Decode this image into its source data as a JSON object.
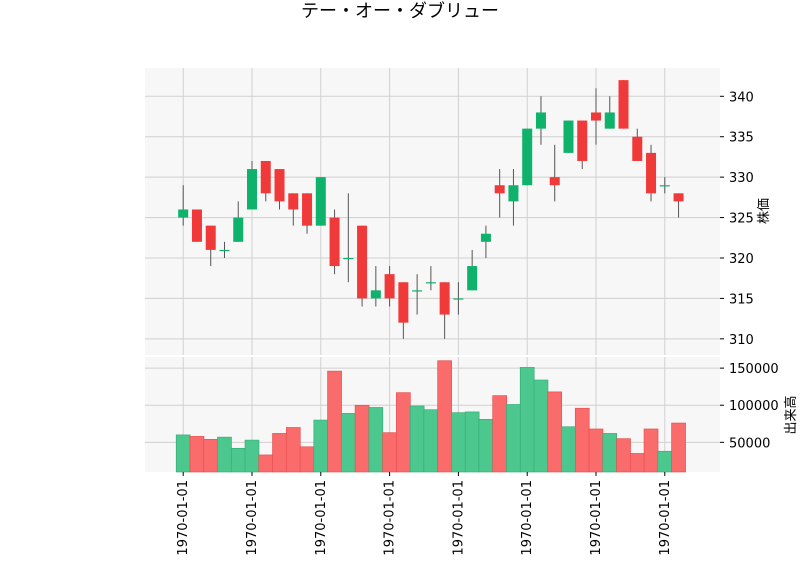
{
  "chart_data": {
    "type": "candlestick",
    "title": "テー・オー・ダブリュー",
    "price_axis": {
      "label": "株価",
      "ylim": [
        308,
        343.5
      ],
      "ticks": [
        310,
        315,
        320,
        325,
        330,
        335,
        340
      ]
    },
    "volume_axis": {
      "label": "出来高",
      "ylim": [
        10000,
        165000
      ],
      "ticks": [
        50000,
        100000,
        150000
      ],
      "tick_labels": [
        "50000",
        "100000",
        "150000"
      ]
    },
    "x_tick_labels": [
      "1970-01-01",
      "1970-01-01",
      "1970-01-01",
      "1970-01-01",
      "1970-01-01",
      "1970-01-01",
      "1970-01-01",
      "1970-01-01"
    ],
    "grid": true,
    "colors": {
      "up": "#0fb26b",
      "down": "#f03a3a",
      "volume_up": "#4cc88f",
      "volume_down": "#fa6b6b",
      "wick": "#555555",
      "panel_bg": "#f7f7f7",
      "grid": "#d0d0d0"
    },
    "candles": [
      {
        "open": 325,
        "high": 329,
        "low": 324,
        "close": 326,
        "volume": 60000
      },
      {
        "open": 326,
        "high": 326,
        "low": 322,
        "close": 322,
        "volume": 58000
      },
      {
        "open": 324,
        "high": 324,
        "low": 319,
        "close": 321,
        "volume": 54000
      },
      {
        "open": 321,
        "high": 322,
        "low": 320,
        "close": 321,
        "volume": 57000
      },
      {
        "open": 322,
        "high": 327,
        "low": 322,
        "close": 325,
        "volume": 42000
      },
      {
        "open": 326,
        "high": 332,
        "low": 326,
        "close": 331,
        "volume": 53000
      },
      {
        "open": 332,
        "high": 332,
        "low": 327,
        "close": 328,
        "volume": 33000
      },
      {
        "open": 331,
        "high": 331,
        "low": 326,
        "close": 327,
        "volume": 62000
      },
      {
        "open": 328,
        "high": 328,
        "low": 324,
        "close": 326,
        "volume": 70000
      },
      {
        "open": 328,
        "high": 328,
        "low": 323,
        "close": 324,
        "volume": 44000
      },
      {
        "open": 324,
        "high": 330,
        "low": 324,
        "close": 330,
        "volume": 80000
      },
      {
        "open": 325,
        "high": 326,
        "low": 318,
        "close": 319,
        "volume": 146000
      },
      {
        "open": 320,
        "high": 328,
        "low": 317,
        "close": 320,
        "volume": 89000
      },
      {
        "open": 324,
        "high": 324,
        "low": 314,
        "close": 315,
        "volume": 100000
      },
      {
        "open": 315,
        "high": 319,
        "low": 314,
        "close": 316,
        "volume": 97000
      },
      {
        "open": 318,
        "high": 319,
        "low": 314,
        "close": 315,
        "volume": 63000
      },
      {
        "open": 317,
        "high": 317,
        "low": 310,
        "close": 312,
        "volume": 117000
      },
      {
        "open": 316,
        "high": 318,
        "low": 313,
        "close": 316,
        "volume": 99000
      },
      {
        "open": 317,
        "high": 319,
        "low": 316,
        "close": 317,
        "volume": 94000
      },
      {
        "open": 317,
        "high": 317,
        "low": 310,
        "close": 313,
        "volume": 160000
      },
      {
        "open": 315,
        "high": 317,
        "low": 313,
        "close": 315,
        "volume": 90000
      },
      {
        "open": 316,
        "high": 321,
        "low": 316,
        "close": 319,
        "volume": 91000
      },
      {
        "open": 322,
        "high": 324,
        "low": 320,
        "close": 323,
        "volume": 81000
      },
      {
        "open": 329,
        "high": 331,
        "low": 325,
        "close": 328,
        "volume": 113000
      },
      {
        "open": 327,
        "high": 331,
        "low": 324,
        "close": 329,
        "volume": 101000
      },
      {
        "open": 329,
        "high": 336,
        "low": 329,
        "close": 336,
        "volume": 151000
      },
      {
        "open": 336,
        "high": 340,
        "low": 334,
        "close": 338,
        "volume": 134000
      },
      {
        "open": 330,
        "high": 334,
        "low": 327,
        "close": 329,
        "volume": 118000
      },
      {
        "open": 333,
        "high": 337,
        "low": 333,
        "close": 337,
        "volume": 71000
      },
      {
        "open": 337,
        "high": 337,
        "low": 331,
        "close": 332,
        "volume": 96000
      },
      {
        "open": 338,
        "high": 341,
        "low": 334,
        "close": 337,
        "volume": 68000
      },
      {
        "open": 336,
        "high": 340,
        "low": 336,
        "close": 338,
        "volume": 62000
      },
      {
        "open": 342,
        "high": 342,
        "low": 336,
        "close": 336,
        "volume": 55000
      },
      {
        "open": 335,
        "high": 336,
        "low": 332,
        "close": 332,
        "volume": 35000
      },
      {
        "open": 333,
        "high": 334,
        "low": 327,
        "close": 328,
        "volume": 68000
      },
      {
        "open": 329,
        "high": 330,
        "low": 328,
        "close": 329,
        "volume": 38000
      },
      {
        "open": 328,
        "high": 328,
        "low": 325,
        "close": 327,
        "volume": 76000
      }
    ]
  }
}
